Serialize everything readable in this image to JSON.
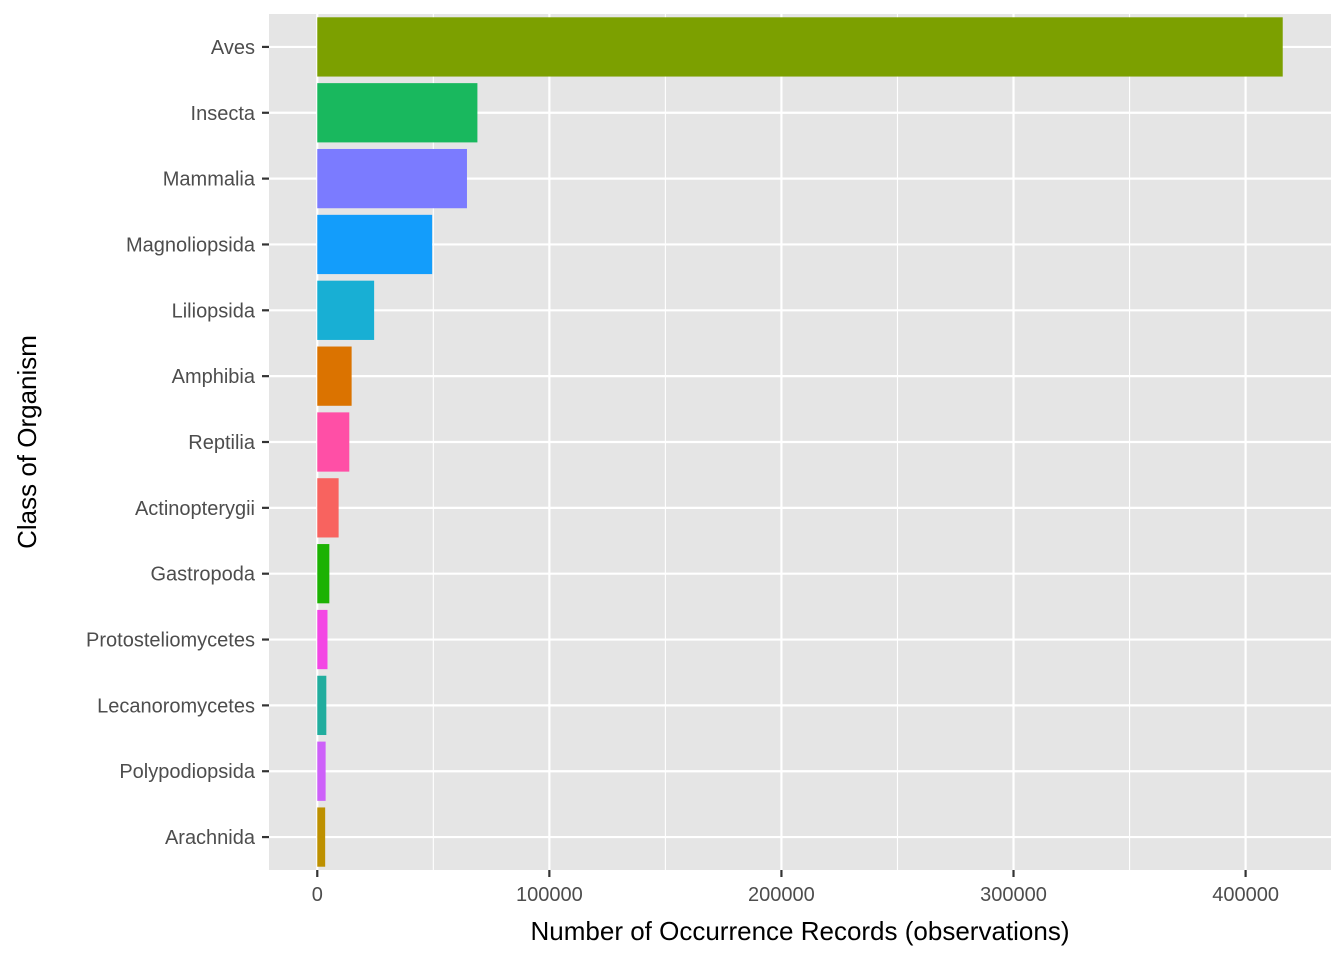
{
  "chart_data": {
    "type": "bar",
    "orientation": "horizontal",
    "title": "",
    "xlabel": "Number of Occurrence Records (observations)",
    "ylabel": "Class of Organism",
    "xlim": [
      -20800,
      436800
    ],
    "x_ticks": [
      0,
      100000,
      200000,
      300000,
      400000
    ],
    "x_tick_labels": [
      "0",
      "100000",
      "200000",
      "300000",
      "400000"
    ],
    "grid": true,
    "legend": "none",
    "categories": [
      "Aves",
      "Insecta",
      "Mammalia",
      "Magnoliopsida",
      "Liliopsida",
      "Amphibia",
      "Reptilia",
      "Actinopterygii",
      "Gastropoda",
      "Protosteliomycetes",
      "Lecanoromycetes",
      "Polypodiopsida",
      "Arachnida"
    ],
    "values": [
      416000,
      69000,
      64500,
      49500,
      24500,
      14800,
      13800,
      9200,
      5200,
      4400,
      3900,
      3600,
      3400
    ],
    "colors": [
      "#7CA000",
      "#19B85E",
      "#7B7BFF",
      "#139DFB",
      "#18AFD4",
      "#DB7300",
      "#FF4FA6",
      "#F8635F",
      "#1CB203",
      "#F347E4",
      "#21AD9E",
      "#CD61F9",
      "#BD9000"
    ]
  },
  "style": {
    "panel_background": "#e5e5e5",
    "grid_color": "#ffffff",
    "tick_color": "#333333"
  }
}
